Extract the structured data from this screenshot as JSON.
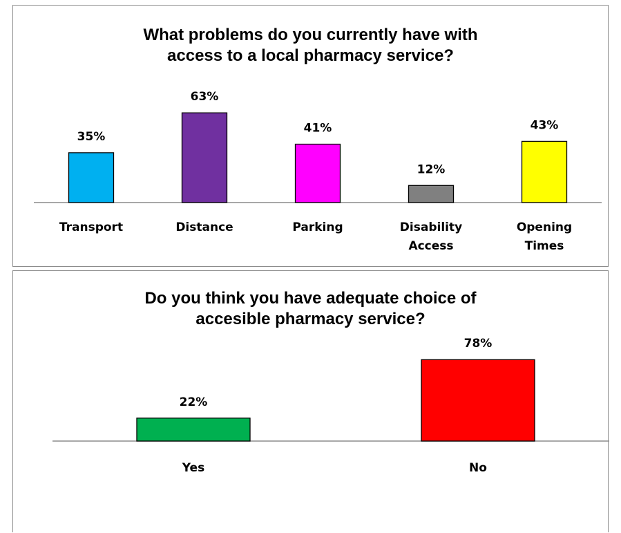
{
  "chart_data": [
    {
      "type": "bar",
      "title": "What problems do you currently have with\naccess to a local pharmacy service?",
      "categories": [
        [
          "Transport"
        ],
        [
          "Distance"
        ],
        [
          "Parking"
        ],
        [
          "Disability",
          "Access"
        ],
        [
          "Opening",
          "Times"
        ]
      ],
      "values": [
        35,
        63,
        41,
        12,
        43
      ],
      "value_labels": [
        "35%",
        "63%",
        "41%",
        "12%",
        "43%"
      ],
      "colors": [
        "#00b0f0",
        "#7030a0",
        "#ff00ff",
        "#808080",
        "#ffff00"
      ],
      "unit": "%",
      "grid": false,
      "legend": "none"
    },
    {
      "type": "bar",
      "title": "Do you think you have adequate choice of\naccesible pharmacy service?",
      "categories": [
        [
          "Yes"
        ],
        [
          "No"
        ]
      ],
      "values": [
        22,
        78
      ],
      "value_labels": [
        "22%",
        "78%"
      ],
      "colors": [
        "#00b050",
        "#ff0000"
      ],
      "unit": "%",
      "grid": false,
      "legend": "none"
    }
  ]
}
